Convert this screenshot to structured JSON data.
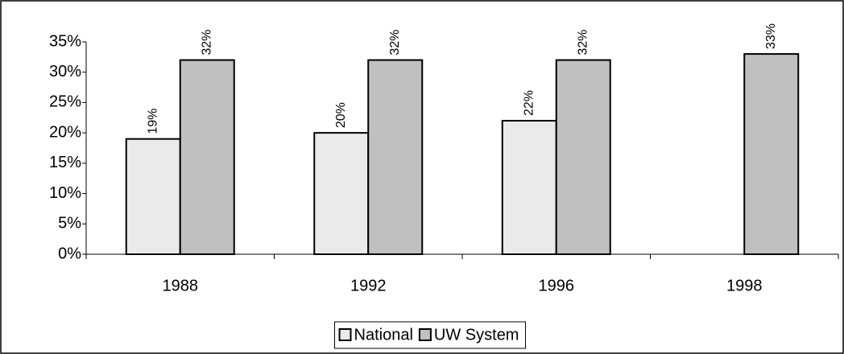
{
  "chart_data": {
    "type": "bar",
    "categories": [
      "1988",
      "1992",
      "1996",
      "1998"
    ],
    "series": [
      {
        "name": "National",
        "color": "#eaeaea",
        "values": [
          19,
          20,
          22,
          null
        ],
        "value_labels": [
          "19%",
          "20%",
          "22%",
          null
        ]
      },
      {
        "name": "UW System",
        "color": "#c0c0c0",
        "values": [
          32,
          32,
          32,
          33
        ],
        "value_labels": [
          "32%",
          "32%",
          "32%",
          "33%"
        ]
      }
    ],
    "ylim": [
      0,
      35
    ],
    "yticks": [
      {
        "value": 0,
        "label": "0%"
      },
      {
        "value": 5,
        "label": "5%"
      },
      {
        "value": 10,
        "label": "10%"
      },
      {
        "value": 15,
        "label": "15%"
      },
      {
        "value": 20,
        "label": "20%"
      },
      {
        "value": 25,
        "label": "25%"
      },
      {
        "value": 30,
        "label": "30%"
      },
      {
        "value": 35,
        "label": "35%"
      }
    ],
    "grid": false,
    "legend": "bottom"
  }
}
